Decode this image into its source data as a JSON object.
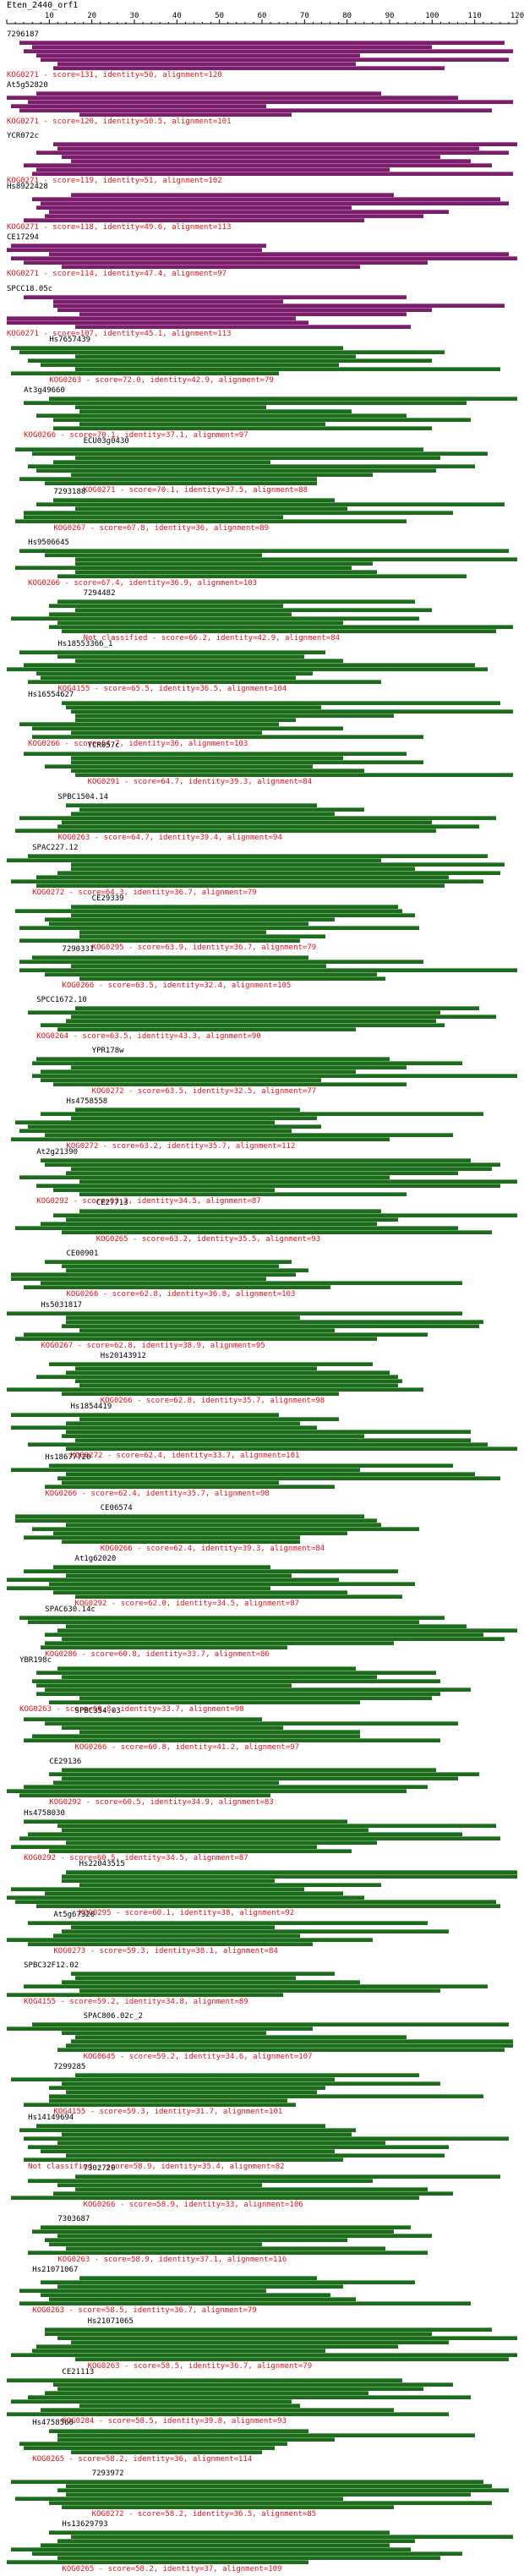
{
  "title": "Eten_2440_orf1",
  "axis": {
    "min": 0,
    "max": 120,
    "ticks": [
      10,
      20,
      30,
      40,
      50,
      60,
      70,
      80,
      90,
      100,
      110,
      120
    ]
  },
  "colors": {
    "purple": "#7a1f69",
    "green": "#1e6b1e",
    "info": "#e8111b"
  },
  "hits": [
    {
      "name": "7296187",
      "kind": "purple",
      "info": "KOG0271 - score=131, identity=50, alignment=120"
    },
    {
      "name": "At5g52820",
      "kind": "purple",
      "info": "KOG0271 - score=120, identity=50.5, alignment=101"
    },
    {
      "name": "YCR072c",
      "kind": "purple",
      "info": "KOG0271 - score=119, identity=51, alignment=102"
    },
    {
      "name": "Hs8922428",
      "kind": "purple",
      "info": "KOG0271 - score=118, identity=49.6, alignment=113"
    },
    {
      "name": "CE17294",
      "kind": "purple",
      "info": "KOG0271 - score=114, identity=47.4, alignment=97"
    },
    {
      "name": "SPCC18.05c",
      "kind": "purple",
      "info": "KOG0271 - score=107, identity=45.1, alignment=113"
    },
    {
      "name": "Hs7657439",
      "kind": "green",
      "info": "KOG0263 - score=72.0, identity=42.9, alignment=79"
    },
    {
      "name": "At3g49660",
      "kind": "green",
      "info": "KOG0266 - score=70.1, identity=37.1, alignment=97"
    },
    {
      "name": "ECU03g0430",
      "kind": "green",
      "info": "KOG0271 - score=70.1, identity=37.5, alignment=88"
    },
    {
      "name": "7293188",
      "kind": "green",
      "info": "KOG0267 - score=67.8, identity=36, alignment=89"
    },
    {
      "name": "Hs9506645",
      "kind": "green",
      "info": "KOG0266 - score=67.4, identity=36.9, alignment=103"
    },
    {
      "name": "7294482",
      "kind": "green",
      "info": "Not classified - score=66.2, identity=42.9, alignment=84"
    },
    {
      "name": "Hs18553366_1",
      "kind": "green",
      "info": "KOG4155 - score=65.5, identity=36.5, alignment=104"
    },
    {
      "name": "Hs16554627",
      "kind": "green",
      "info": "KOG0266 - score=64.7, identity=36, alignment=103"
    },
    {
      "name": "YCR057c",
      "kind": "green",
      "info": "KOG0291 - score=64.7, identity=39.3, alignment=84"
    },
    {
      "name": "SPBC1504.14",
      "kind": "green",
      "info": "KOG0263 - score=64.7, identity=39.4, alignment=94"
    },
    {
      "name": "SPAC227.12",
      "kind": "green",
      "info": "KOG0272 - score=64.3, identity=36.7, alignment=79"
    },
    {
      "name": "CE29339",
      "kind": "green",
      "info": "KOG0295 - score=63.9, identity=36.7, alignment=79"
    },
    {
      "name": "7290331",
      "kind": "green",
      "info": "KOG0266 - score=63.5, identity=32.4, alignment=105"
    },
    {
      "name": "SPCC1672.10",
      "kind": "green",
      "info": "KOG0264 - score=63.5, identity=43.3, alignment=90"
    },
    {
      "name": "YPR178w",
      "kind": "green",
      "info": "KOG0272 - score=63.5, identity=32.5, alignment=77"
    },
    {
      "name": "Hs4758558",
      "kind": "green",
      "info": "KOG0272 - score=63.2, identity=35.7, alignment=112"
    },
    {
      "name": "At2g21390",
      "kind": "green",
      "info": "KOG0292 - score=63.2, identity=34.5, alignment=87"
    },
    {
      "name": "CE27713",
      "kind": "green",
      "info": "KOG0265 - score=63.2, identity=35.5, alignment=93"
    },
    {
      "name": "CE00901",
      "kind": "green",
      "info": "KOG0266 - score=62.8, identity=36.8, alignment=103"
    },
    {
      "name": "Hs5031817",
      "kind": "green",
      "info": "KOG0267 - score=62.8, identity=38.9, alignment=95"
    },
    {
      "name": "Hs20143912",
      "kind": "green",
      "info": "KOG0266 - score=62.8, identity=35.7, alignment=98"
    },
    {
      "name": "Hs1854419",
      "kind": "green",
      "info": "KOG0272 - score=62.4, identity=33.7, alignment=101"
    },
    {
      "name": "Hs18677720",
      "kind": "green",
      "info": "KOG0266 - score=62.4, identity=35.7, alignment=98"
    },
    {
      "name": "CE06574",
      "kind": "green",
      "info": "KOG0266 - score=62.4, identity=39.3, alignment=84"
    },
    {
      "name": "At1g62020",
      "kind": "green",
      "info": "KOG0292 - score=62.0, identity=34.5, alignment=87"
    },
    {
      "name": "SPAC630.14c",
      "kind": "green",
      "info": "KOG0286 - score=60.8, identity=33.7, alignment=86"
    },
    {
      "name": "YBR198c",
      "kind": "green",
      "info": "KOG0263 - score=60.8, identity=33.7, alignment=98"
    },
    {
      "name": "SPBC354.03",
      "kind": "green",
      "info": "KOG0266 - score=60.8, identity=41.2, alignment=97"
    },
    {
      "name": "CE29136",
      "kind": "green",
      "info": "KOG0292 - score=60.5, identity=34.9, alignment=83"
    },
    {
      "name": "Hs4758030",
      "kind": "green",
      "info": "KOG0292 - score=60.5, identity=34.5, alignment=87"
    },
    {
      "name": "Hs22043515",
      "kind": "green",
      "info": "KOG0295 - score=60.1, identity=38, alignment=92"
    },
    {
      "name": "At5g67320",
      "kind": "green",
      "info": "KOG0273 - score=59.3, identity=38.1, alignment=84"
    },
    {
      "name": "SPBC32F12.02",
      "kind": "green",
      "info": "KOG4155 - score=59.2, identity=34.8, alignment=89"
    },
    {
      "name": "SPAC806.02c_2",
      "kind": "green",
      "info": "KOG0645 - score=59.2, identity=34.6, alignment=107"
    },
    {
      "name": "7299285",
      "kind": "green",
      "info": "KOG4155 - score=59.3, identity=31.7, alignment=101"
    },
    {
      "name": "Hs14149694",
      "kind": "green",
      "info": "Not classified - score=58.9, identity=35.4, alignment=82"
    },
    {
      "name": "7302720",
      "kind": "green",
      "info": "KOG0266 - score=58.9, identity=33, alignment=106"
    },
    {
      "name": "7303687",
      "kind": "green",
      "info": "KOG0263 - score=58.9, identity=37.1, alignment=116"
    },
    {
      "name": "Hs21071067",
      "kind": "green",
      "info": "KOG0263 - score=58.5, identity=36.7, alignment=79"
    },
    {
      "name": "Hs21071065",
      "kind": "green",
      "info": "KOG0263 - score=58.5, identity=36.7, alignment=79"
    },
    {
      "name": "CE21113",
      "kind": "green",
      "info": "KOG0284 - score=58.5, identity=39.8, alignment=93"
    },
    {
      "name": "Hs4758560",
      "kind": "green",
      "info": "KOG0265 - score=58.2, identity=36, alignment=114"
    },
    {
      "name": "7293972",
      "kind": "green",
      "info": "KOG0272 - score=58.2, identity=36.5, alignment=85"
    },
    {
      "name": "Hs13629793",
      "kind": "green",
      "info": "KOG0265 - score=58.2, identity=37, alignment=109"
    }
  ]
}
